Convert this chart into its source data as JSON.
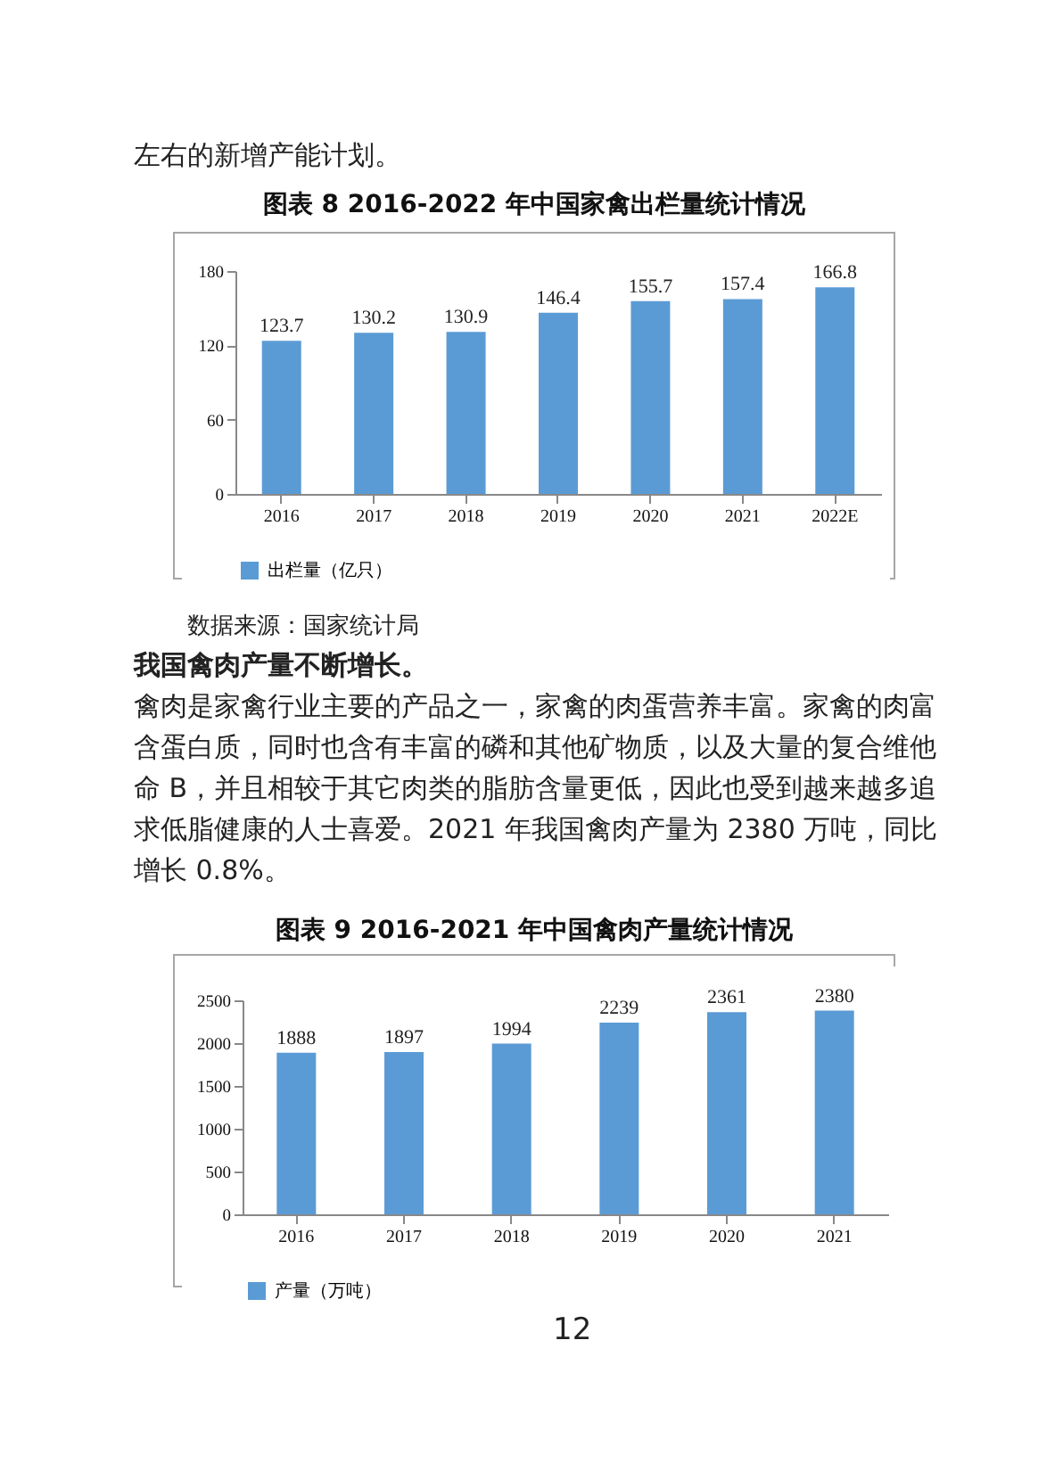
{
  "chart_data": [
    {
      "type": "other",
      "annotations": [
        "左右的新增产能计划。"
      ]
    },
    {
      "type": "bar",
      "title": "图表 8   2016-2022 年中国家禽出栏量统计情况",
      "categories": [
        "2016",
        "2017",
        "2018",
        "2019",
        "2020",
        "2021",
        "2022E"
      ],
      "series": [
        {
          "name": "出栏量（亿只）",
          "color": "#5b9bd5",
          "values": [
            123.7,
            130.2,
            130.9,
            146.4,
            155.7,
            157.4,
            166.8
          ]
        }
      ],
      "ylim": [
        0,
        180
      ],
      "yticks": [
        0,
        60,
        120,
        180
      ],
      "data_labels": true,
      "legend": "bottom"
    },
    {
      "type": "other",
      "annotations": [
        "数据来源：国家统计局"
      ]
    },
    {
      "type": "other",
      "title": "我国禽肉产量不断增长。",
      "annotations": [
        "禽肉是家禽行业主要的产品之一，家禽的肉蛋营养丰富。家禽的肉富含蛋白质，同时也含有丰富的磷和其他矿物质，以及大量的复合维他命 B，并且相较于其它肉类的脂肪含量更低，因此也受到越来越多追求低脂健康的人士喜爱。2021 年我国禽肉产量为 2380 万吨，同比增长 0.8%。"
      ]
    },
    {
      "type": "bar",
      "title": "图表 9   2016-2021 年中国禽肉产量统计情况",
      "categories": [
        "2016",
        "2017",
        "2018",
        "2019",
        "2020",
        "2021"
      ],
      "series": [
        {
          "name": "产量（万吨）",
          "color": "#5b9bd5",
          "values": [
            1888,
            1897,
            1994,
            2239,
            2361,
            2380
          ]
        }
      ],
      "ylim": [
        0,
        2500
      ],
      "yticks": [
        0,
        500,
        1000,
        1500,
        2000,
        2500
      ],
      "data_labels": true,
      "legend": "bottom"
    },
    {
      "type": "other",
      "annotations": [
        "12"
      ]
    }
  ]
}
